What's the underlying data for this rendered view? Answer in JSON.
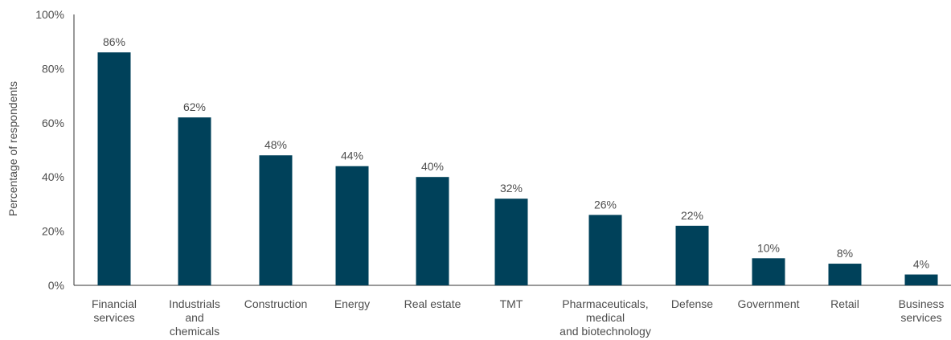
{
  "chart_data": {
    "type": "bar",
    "ylabel": "Percentage of respondents",
    "ylim": [
      0,
      100
    ],
    "yticks": [
      "0%",
      "20%",
      "40%",
      "60%",
      "80%",
      "100%"
    ],
    "ytick_values": [
      0,
      20,
      40,
      60,
      80,
      100
    ],
    "grid": false,
    "bar_color": "#00415a",
    "categories": [
      [
        "Financial",
        "services"
      ],
      [
        "Industrials",
        "and",
        "chemicals"
      ],
      [
        "Construction"
      ],
      [
        "Energy"
      ],
      [
        "Real estate"
      ],
      [
        "TMT"
      ],
      [
        "Pharmaceuticals,",
        "medical",
        "and biotechnology"
      ],
      [
        "Defense"
      ],
      [
        "Government"
      ],
      [
        "Retail"
      ],
      [
        "Business",
        "services"
      ]
    ],
    "values": [
      86,
      62,
      48,
      44,
      40,
      32,
      26,
      22,
      10,
      8,
      4
    ],
    "data_labels": [
      "86%",
      "62%",
      "48%",
      "44%",
      "40%",
      "32%",
      "26%",
      "22%",
      "10%",
      "8%",
      "4%"
    ]
  }
}
